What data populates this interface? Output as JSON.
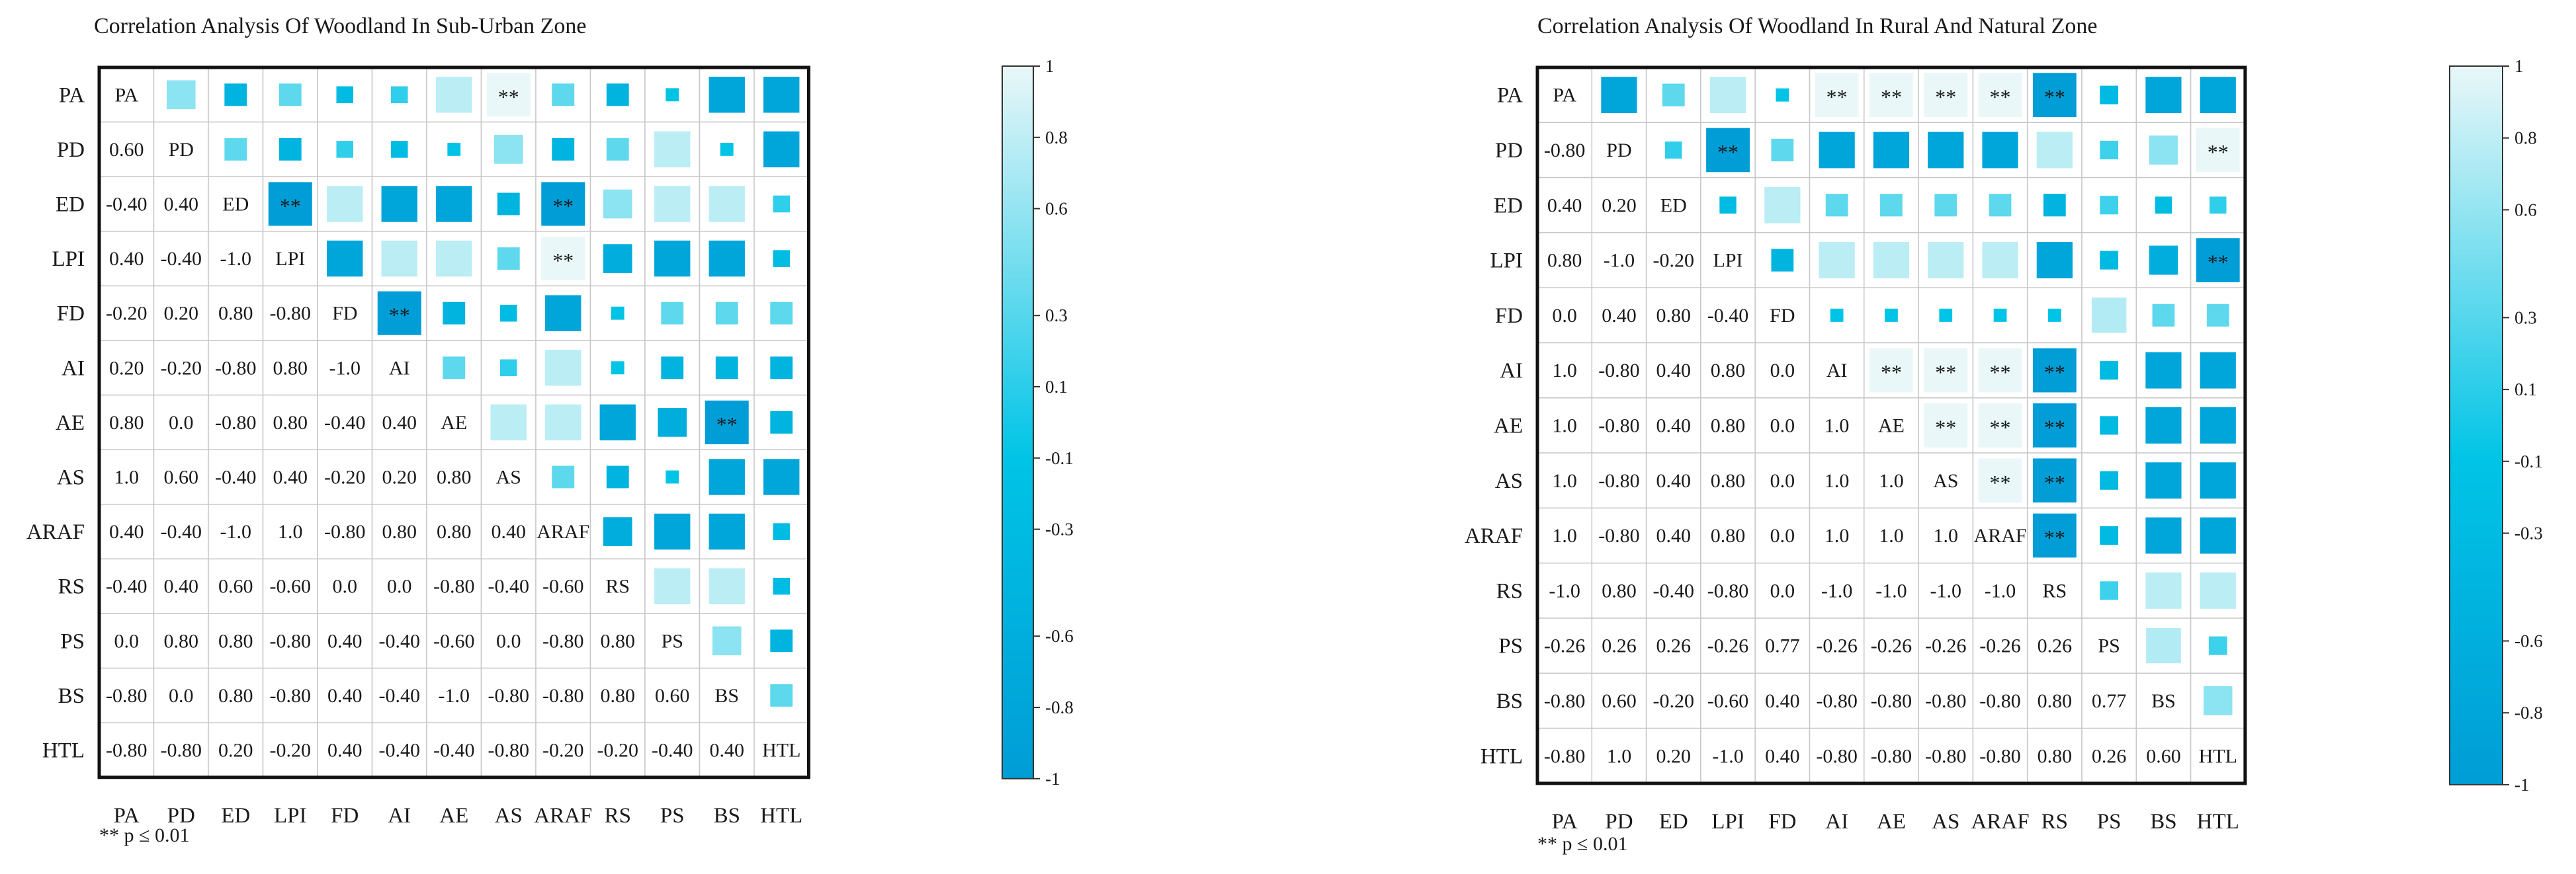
{
  "chart_data": [
    {
      "type": "heatmap",
      "title": "Correlation Analysis Of Woodland In Sub-Urban Zone",
      "variables": [
        "PA",
        "PD",
        "ED",
        "LPI",
        "FD",
        "AI",
        "AE",
        "AS",
        "ARAF",
        "RS",
        "PS",
        "BS",
        "HTL"
      ],
      "lower_values": [
        [],
        [
          "0.60"
        ],
        [
          "-0.40",
          "0.40"
        ],
        [
          "0.40",
          "-0.40",
          "-1.0"
        ],
        [
          "-0.20",
          "0.20",
          "0.80",
          "-0.80"
        ],
        [
          "0.20",
          "-0.20",
          "-0.80",
          "0.80",
          "-1.0"
        ],
        [
          "0.80",
          "0.0",
          "-0.80",
          "0.80",
          "-0.40",
          "0.40"
        ],
        [
          "1.0",
          "0.60",
          "-0.40",
          "0.40",
          "-0.20",
          "0.20",
          "0.80"
        ],
        [
          "0.40",
          "-0.40",
          "-1.0",
          "1.0",
          "-0.80",
          "0.80",
          "0.80",
          "0.40"
        ],
        [
          "-0.40",
          "0.40",
          "0.60",
          "-0.60",
          "0.0",
          "0.0",
          "-0.80",
          "-0.40",
          "-0.60"
        ],
        [
          "0.0",
          "0.80",
          "0.80",
          "-0.80",
          "0.40",
          "-0.40",
          "-0.60",
          "0.0",
          "-0.80",
          "0.80"
        ],
        [
          "-0.80",
          "0.0",
          "0.80",
          "-0.80",
          "0.40",
          "-0.40",
          "-1.0",
          "-0.80",
          "-0.80",
          "0.80",
          "0.60"
        ],
        [
          "-0.80",
          "-0.80",
          "0.20",
          "-0.20",
          "0.40",
          "-0.40",
          "-0.40",
          "-0.80",
          "-0.20",
          "-0.20",
          "-0.40",
          "0.40"
        ]
      ],
      "significant_label": "**",
      "significant_cells": [
        [
          0,
          7
        ],
        [
          2,
          3
        ],
        [
          2,
          8
        ],
        [
          3,
          8
        ],
        [
          4,
          5
        ],
        [
          6,
          11
        ]
      ],
      "colorbar_ticks": [
        "1",
        "0.8",
        "0.6",
        "0.3",
        "0.1",
        "-0.1",
        "-0.3",
        "-0.6",
        "-0.8",
        "-1"
      ],
      "colorbar_range": [
        -1,
        1
      ],
      "colors": {
        "high": "#e9f7f8",
        "mid": "#00c4e6",
        "low": "#009dd6",
        "grid": "#c8c8c8",
        "border": "#111111"
      },
      "footnote": "** p ≤ 0.01"
    },
    {
      "type": "heatmap",
      "title": "Correlation Analysis Of Woodland In Rural And Natural Zone",
      "variables": [
        "PA",
        "PD",
        "ED",
        "LPI",
        "FD",
        "AI",
        "AE",
        "AS",
        "ARAF",
        "RS",
        "PS",
        "BS",
        "HTL"
      ],
      "lower_values": [
        [],
        [
          "-0.80"
        ],
        [
          "0.40",
          "0.20"
        ],
        [
          "0.80",
          "-1.0",
          "-0.20"
        ],
        [
          "0.0",
          "0.40",
          "0.80",
          "-0.40"
        ],
        [
          "1.0",
          "-0.80",
          "0.40",
          "0.80",
          "0.0"
        ],
        [
          "1.0",
          "-0.80",
          "0.40",
          "0.80",
          "0.0",
          "1.0"
        ],
        [
          "1.0",
          "-0.80",
          "0.40",
          "0.80",
          "0.0",
          "1.0",
          "1.0"
        ],
        [
          "1.0",
          "-0.80",
          "0.40",
          "0.80",
          "0.0",
          "1.0",
          "1.0",
          "1.0"
        ],
        [
          "-1.0",
          "0.80",
          "-0.40",
          "-0.80",
          "0.0",
          "-1.0",
          "-1.0",
          "-1.0",
          "-1.0"
        ],
        [
          "-0.26",
          "0.26",
          "0.26",
          "-0.26",
          "0.77",
          "-0.26",
          "-0.26",
          "-0.26",
          "-0.26",
          "0.26"
        ],
        [
          "-0.80",
          "0.60",
          "-0.20",
          "-0.60",
          "0.40",
          "-0.80",
          "-0.80",
          "-0.80",
          "-0.80",
          "0.80",
          "0.77"
        ],
        [
          "-0.80",
          "1.0",
          "0.20",
          "-1.0",
          "0.40",
          "-0.80",
          "-0.80",
          "-0.80",
          "-0.80",
          "0.80",
          "0.26",
          "0.60"
        ]
      ],
      "significant_label": "**",
      "significant_cells": [
        [
          0,
          5
        ],
        [
          0,
          6
        ],
        [
          0,
          7
        ],
        [
          0,
          8
        ],
        [
          0,
          9
        ],
        [
          1,
          3
        ],
        [
          1,
          12
        ],
        [
          3,
          12
        ],
        [
          5,
          6
        ],
        [
          5,
          7
        ],
        [
          5,
          8
        ],
        [
          5,
          9
        ],
        [
          6,
          7
        ],
        [
          6,
          8
        ],
        [
          6,
          9
        ],
        [
          7,
          8
        ],
        [
          7,
          9
        ],
        [
          8,
          9
        ]
      ],
      "colorbar_ticks": [
        "1",
        "0.8",
        "0.6",
        "0.3",
        "0.1",
        "-0.1",
        "-0.3",
        "-0.6",
        "-0.8",
        "-1"
      ],
      "colorbar_range": [
        -1,
        1
      ],
      "colors": {
        "high": "#e9f7f8",
        "mid": "#00c4e6",
        "low": "#009dd6",
        "grid": "#c8c8c8",
        "border": "#111111"
      },
      "footnote": "** p ≤ 0.01"
    }
  ]
}
